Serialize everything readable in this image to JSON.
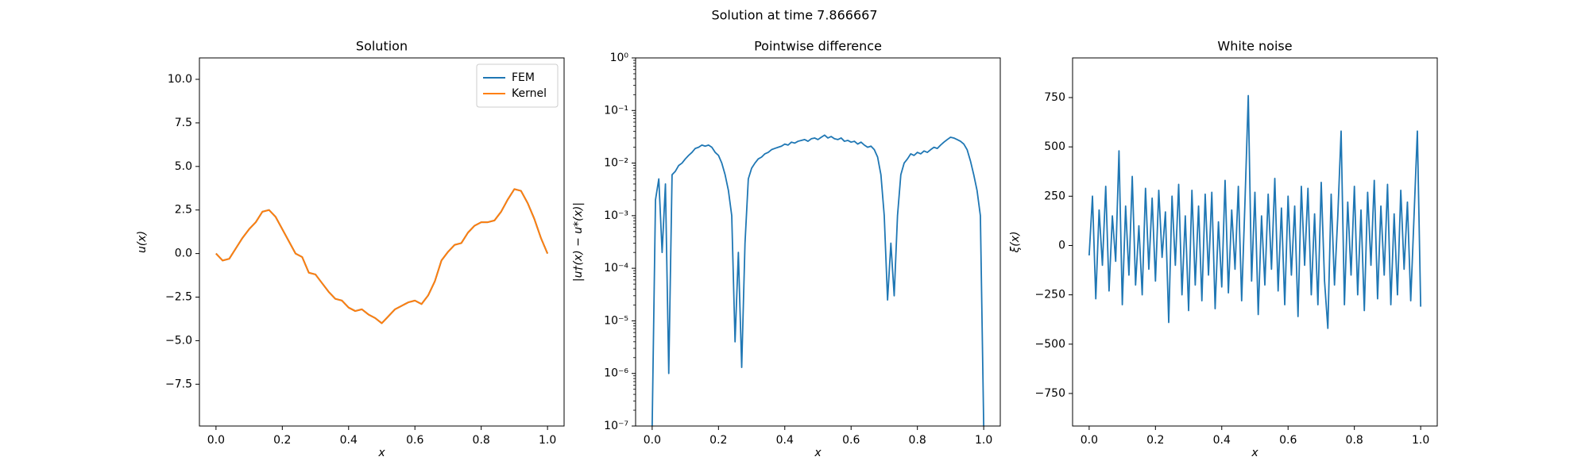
{
  "title": "Solution at time 7.866667",
  "chart_data": [
    {
      "type": "line",
      "title": "Solution",
      "xlabel": "x",
      "ylabel": "u(x)",
      "xlim": [
        -0.05,
        1.05
      ],
      "ylim": [
        -9.9,
        11.23
      ],
      "xticks": [
        {
          "value": 0,
          "label": "0.0"
        },
        {
          "value": 0.2,
          "label": "0.2"
        },
        {
          "value": 0.4,
          "label": "0.4"
        },
        {
          "value": 0.6,
          "label": "0.6"
        },
        {
          "value": 0.8,
          "label": "0.8"
        },
        {
          "value": 1,
          "label": "1.0"
        }
      ],
      "yticks": [
        {
          "value": -7.5,
          "label": "−7.5"
        },
        {
          "value": -5,
          "label": "−5.0"
        },
        {
          "value": -2.5,
          "label": "−2.5"
        },
        {
          "value": 0,
          "label": "0.0"
        },
        {
          "value": 2.5,
          "label": "2.5"
        },
        {
          "value": 5,
          "label": "5.0"
        },
        {
          "value": 7.5,
          "label": "7.5"
        },
        {
          "value": 10,
          "label": "10.0"
        }
      ],
      "legend": "upper right",
      "x": [
        0,
        0.02,
        0.04,
        0.06,
        0.08,
        0.1,
        0.12,
        0.14,
        0.16,
        0.18,
        0.2,
        0.22,
        0.24,
        0.26,
        0.28,
        0.3,
        0.32,
        0.34,
        0.36,
        0.38,
        0.4,
        0.42,
        0.44,
        0.46,
        0.48,
        0.5,
        0.52,
        0.54,
        0.56,
        0.58,
        0.6,
        0.62,
        0.64,
        0.66,
        0.68,
        0.7,
        0.72,
        0.74,
        0.76,
        0.78,
        0.8,
        0.82,
        0.84,
        0.86,
        0.88,
        0.9,
        0.92,
        0.94,
        0.96,
        0.98,
        1
      ],
      "series": [
        {
          "name": "FEM",
          "color": "#1f77b4",
          "values": [
            0,
            -0.4,
            -0.3,
            0.3,
            0.9,
            1.4,
            1.8,
            2.4,
            2.5,
            2.1,
            1.4,
            0.7,
            0,
            -0.2,
            -1.1,
            -1.2,
            -1.7,
            -2.2,
            -2.6,
            -2.7,
            -3.1,
            -3.3,
            -3.2,
            -3.5,
            -3.7,
            -4,
            -3.6,
            -3.2,
            -3,
            -2.8,
            -2.7,
            -2.9,
            -2.4,
            -1.6,
            -0.4,
            0.1,
            0.5,
            0.6,
            1.2,
            1.6,
            1.8,
            1.8,
            1.9,
            2.4,
            3.1,
            3.7,
            3.6,
            2.9,
            2,
            0.9,
            0
          ]
        },
        {
          "name": "Kernel",
          "color": "#ff7f0e",
          "values": [
            0,
            -0.4,
            -0.3,
            0.3,
            0.9,
            1.4,
            1.8,
            2.4,
            2.5,
            2.1,
            1.4,
            0.7,
            0,
            -0.2,
            -1.1,
            -1.2,
            -1.7,
            -2.2,
            -2.6,
            -2.7,
            -3.1,
            -3.3,
            -3.2,
            -3.5,
            -3.7,
            -4,
            -3.6,
            -3.2,
            -3,
            -2.8,
            -2.7,
            -2.9,
            -2.4,
            -1.6,
            -0.4,
            0.1,
            0.5,
            0.6,
            1.2,
            1.6,
            1.8,
            1.8,
            1.9,
            2.4,
            3.1,
            3.7,
            3.6,
            2.9,
            2,
            0.9,
            0
          ]
        }
      ]
    },
    {
      "type": "line",
      "title": "Pointwise difference",
      "xlabel": "x",
      "ylabel": "|u†(x) − u*(x)|",
      "yscale": "log",
      "color": "#1f77b4",
      "xlim": [
        -0.05,
        1.05
      ],
      "ylim": [
        1e-07,
        1
      ],
      "xticks": [
        {
          "value": 0,
          "label": "0.0"
        },
        {
          "value": 0.2,
          "label": "0.2"
        },
        {
          "value": 0.4,
          "label": "0.4"
        },
        {
          "value": 0.6,
          "label": "0.6"
        },
        {
          "value": 0.8,
          "label": "0.8"
        },
        {
          "value": 1,
          "label": "1.0"
        }
      ],
      "yticks": [
        {
          "value": 1e-07,
          "label": "10⁻⁷"
        },
        {
          "value": 1e-06,
          "label": "10⁻⁶"
        },
        {
          "value": 1e-05,
          "label": "10⁻⁵"
        },
        {
          "value": 0.0001,
          "label": "10⁻⁴"
        },
        {
          "value": 0.001,
          "label": "10⁻³"
        },
        {
          "value": 0.01,
          "label": "10⁻²"
        },
        {
          "value": 0.1,
          "label": "10⁻¹"
        },
        {
          "value": 1,
          "label": "10⁰"
        }
      ],
      "x": [
        0,
        0.01,
        0.02,
        0.03,
        0.04,
        0.05,
        0.06,
        0.07,
        0.08,
        0.09,
        0.1,
        0.11,
        0.12,
        0.13,
        0.14,
        0.15,
        0.16,
        0.17,
        0.18,
        0.19,
        0.2,
        0.21,
        0.22,
        0.23,
        0.24,
        0.25,
        0.26,
        0.27,
        0.28,
        0.29,
        0.3,
        0.31,
        0.32,
        0.33,
        0.34,
        0.35,
        0.36,
        0.37,
        0.38,
        0.39,
        0.4,
        0.41,
        0.42,
        0.43,
        0.44,
        0.45,
        0.46,
        0.47,
        0.48,
        0.49,
        0.5,
        0.51,
        0.52,
        0.53,
        0.54,
        0.55,
        0.56,
        0.57,
        0.58,
        0.59,
        0.6,
        0.61,
        0.62,
        0.63,
        0.64,
        0.65,
        0.66,
        0.67,
        0.68,
        0.69,
        0.7,
        0.71,
        0.72,
        0.73,
        0.74,
        0.75,
        0.76,
        0.77,
        0.78,
        0.79,
        0.8,
        0.81,
        0.82,
        0.83,
        0.84,
        0.85,
        0.86,
        0.87,
        0.88,
        0.89,
        0.9,
        0.91,
        0.92,
        0.93,
        0.94,
        0.95,
        0.96,
        0.97,
        0.98,
        0.99,
        1
      ],
      "values": [
        1e-07,
        0.002,
        0.005,
        0.0002,
        0.004,
        1e-06,
        0.006,
        0.007,
        0.009,
        0.01,
        0.012,
        0.014,
        0.016,
        0.019,
        0.02,
        0.022,
        0.021,
        0.022,
        0.02,
        0.016,
        0.014,
        0.01,
        0.006,
        0.003,
        0.001,
        4e-06,
        0.0002,
        1.3e-06,
        0.0003,
        0.005,
        0.008,
        0.01,
        0.012,
        0.013,
        0.015,
        0.016,
        0.018,
        0.019,
        0.02,
        0.021,
        0.023,
        0.022,
        0.025,
        0.024,
        0.026,
        0.027,
        0.028,
        0.026,
        0.029,
        0.03,
        0.028,
        0.031,
        0.034,
        0.03,
        0.032,
        0.029,
        0.028,
        0.03,
        0.026,
        0.027,
        0.025,
        0.026,
        0.023,
        0.025,
        0.022,
        0.02,
        0.021,
        0.018,
        0.013,
        0.006,
        0.001,
        2.5e-05,
        0.0003,
        3e-05,
        0.001,
        0.006,
        0.01,
        0.012,
        0.015,
        0.014,
        0.016,
        0.015,
        0.017,
        0.016,
        0.018,
        0.02,
        0.019,
        0.022,
        0.025,
        0.028,
        0.031,
        0.03,
        0.028,
        0.026,
        0.023,
        0.018,
        0.011,
        0.006,
        0.003,
        0.001,
        1e-07
      ]
    },
    {
      "type": "line",
      "title": "White noise",
      "xlabel": "x",
      "ylabel": "ξ(x)",
      "color": "#1f77b4",
      "xlim": [
        -0.05,
        1.05
      ],
      "ylim": [
        -915,
        951
      ],
      "xticks": [
        {
          "value": 0,
          "label": "0.0"
        },
        {
          "value": 0.2,
          "label": "0.2"
        },
        {
          "value": 0.4,
          "label": "0.4"
        },
        {
          "value": 0.6,
          "label": "0.6"
        },
        {
          "value": 0.8,
          "label": "0.8"
        },
        {
          "value": 1,
          "label": "1.0"
        }
      ],
      "yticks": [
        {
          "value": -750,
          "label": "−750"
        },
        {
          "value": -500,
          "label": "−500"
        },
        {
          "value": -250,
          "label": "−250"
        },
        0,
        250,
        500,
        750
      ],
      "x": [
        0,
        0.01,
        0.02,
        0.03,
        0.04,
        0.05,
        0.06,
        0.07,
        0.08,
        0.09,
        0.1,
        0.11,
        0.12,
        0.13,
        0.14,
        0.15,
        0.16,
        0.17,
        0.18,
        0.19,
        0.2,
        0.21,
        0.22,
        0.23,
        0.24,
        0.25,
        0.26,
        0.27,
        0.28,
        0.29,
        0.3,
        0.31,
        0.32,
        0.33,
        0.34,
        0.35,
        0.36,
        0.37,
        0.38,
        0.39,
        0.4,
        0.41,
        0.42,
        0.43,
        0.44,
        0.45,
        0.46,
        0.47,
        0.48,
        0.49,
        0.5,
        0.51,
        0.52,
        0.53,
        0.54,
        0.55,
        0.56,
        0.57,
        0.58,
        0.59,
        0.6,
        0.61,
        0.62,
        0.63,
        0.64,
        0.65,
        0.66,
        0.67,
        0.68,
        0.69,
        0.7,
        0.71,
        0.72,
        0.73,
        0.74,
        0.75,
        0.76,
        0.77,
        0.78,
        0.79,
        0.8,
        0.81,
        0.82,
        0.83,
        0.84,
        0.85,
        0.86,
        0.87,
        0.88,
        0.89,
        0.9,
        0.91,
        0.92,
        0.93,
        0.94,
        0.95,
        0.96,
        0.97,
        0.98,
        0.99,
        1
      ],
      "values": [
        -50,
        250,
        -270,
        180,
        -100,
        300,
        -230,
        150,
        -80,
        480,
        -300,
        200,
        -150,
        350,
        -200,
        100,
        -250,
        290,
        -120,
        240,
        -180,
        280,
        -60,
        170,
        -390,
        250,
        -100,
        310,
        -250,
        150,
        -330,
        280,
        -200,
        200,
        -280,
        260,
        -150,
        270,
        -320,
        120,
        -210,
        330,
        -240,
        180,
        -120,
        300,
        -280,
        220,
        760,
        -180,
        270,
        -350,
        150,
        -200,
        260,
        -120,
        340,
        -230,
        190,
        -300,
        250,
        -150,
        200,
        -360,
        300,
        -100,
        290,
        -250,
        160,
        -300,
        320,
        -180,
        -420,
        260,
        -200,
        150,
        580,
        -300,
        220,
        -150,
        300,
        -250,
        180,
        -330,
        270,
        -100,
        330,
        -270,
        200,
        -150,
        310,
        -300,
        160,
        -250,
        280,
        -120,
        220,
        -280,
        150,
        580,
        -310
      ]
    }
  ]
}
